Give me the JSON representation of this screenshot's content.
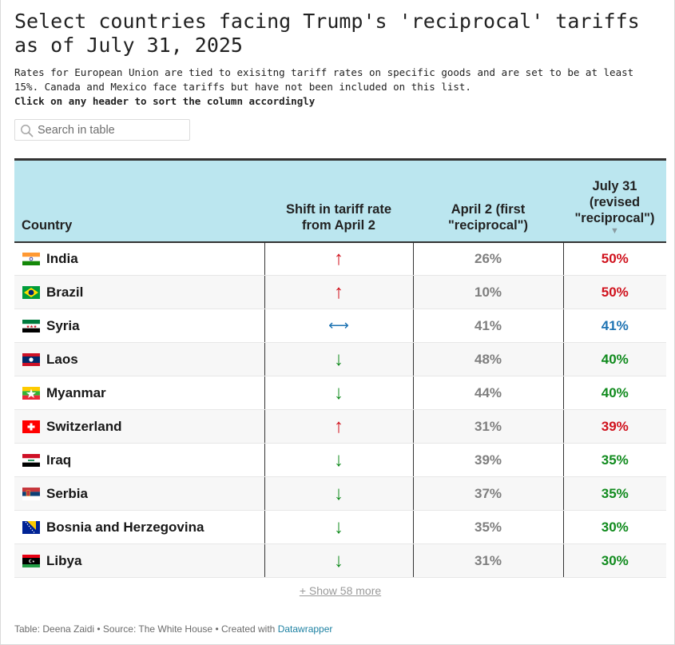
{
  "title": "Select countries facing Trump's 'reciprocal' tariffs as of July 31, 2025",
  "description": "Rates for European Union are tied to exisitng tariff rates on specific goods and are set to be at least 15%. Canada and Mexico face tariffs but have not been included on this list.",
  "instruction": "Click on any header to sort the column accordingly",
  "search": {
    "placeholder": "Search in table",
    "icon": "search-icon"
  },
  "colors": {
    "up": "#d0121d",
    "down": "#118b1e",
    "same": "#1f74b3",
    "header_bg": "#bbe6ef"
  },
  "chart_data": {
    "type": "table",
    "columns": [
      "Country",
      "Shift in tariff rate from April 2",
      "April 2 (first \"reciprocal\")",
      "July 31 (revised \"reciprocal\")"
    ],
    "sorted_column": "July 31 (revised \"reciprocal\")",
    "sort_order": "descending",
    "rows": [
      {
        "country": "India",
        "flag": "india-flag",
        "shift": "up",
        "shift_symbol": "↑",
        "april": "26%",
        "july": "50%"
      },
      {
        "country": "Brazil",
        "flag": "brazil-flag",
        "shift": "up",
        "shift_symbol": "↑",
        "april": "10%",
        "july": "50%"
      },
      {
        "country": "Syria",
        "flag": "syria-flag",
        "shift": "same",
        "shift_symbol": "⟷",
        "april": "41%",
        "july": "41%"
      },
      {
        "country": "Laos",
        "flag": "laos-flag",
        "shift": "down",
        "shift_symbol": "↓",
        "april": "48%",
        "july": "40%"
      },
      {
        "country": "Myanmar",
        "flag": "myanmar-flag",
        "shift": "down",
        "shift_symbol": "↓",
        "april": "44%",
        "july": "40%"
      },
      {
        "country": "Switzerland",
        "flag": "switzerland-flag",
        "shift": "up",
        "shift_symbol": "↑",
        "april": "31%",
        "july": "39%"
      },
      {
        "country": "Iraq",
        "flag": "iraq-flag",
        "shift": "down",
        "shift_symbol": "↓",
        "april": "39%",
        "july": "35%"
      },
      {
        "country": "Serbia",
        "flag": "serbia-flag",
        "shift": "down",
        "shift_symbol": "↓",
        "april": "37%",
        "july": "35%"
      },
      {
        "country": "Bosnia and Herzegovina",
        "flag": "bosnia-and-herzegovina-flag",
        "shift": "down",
        "shift_symbol": "↓",
        "april": "35%",
        "july": "30%"
      },
      {
        "country": "Libya",
        "flag": "libya-flag",
        "shift": "down",
        "shift_symbol": "↓",
        "april": "31%",
        "july": "30%"
      }
    ]
  },
  "show_more": "+ Show 58 more",
  "footer": {
    "text": "Table: Deena Zaidi • Source: The White House • Created with",
    "link": "Datawrapper"
  }
}
